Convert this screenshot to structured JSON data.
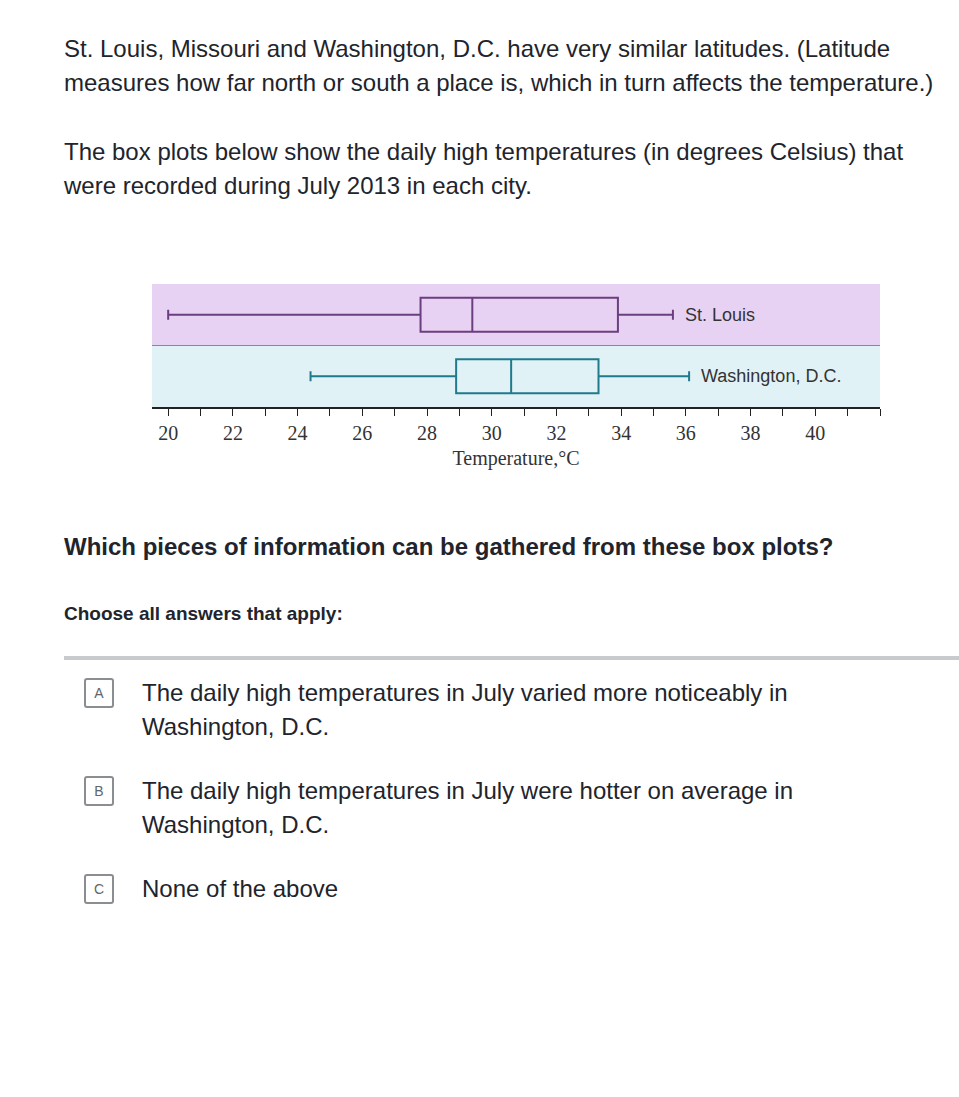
{
  "intro": [
    "St. Louis, Missouri and Washington, D.C. have very similar latitudes. (Latitude measures how far north or south a place is, which in turn affects the temperature.)",
    "The box plots below show the daily high temperatures (in degrees Celsius) that were recorded during July 2013 in each city."
  ],
  "chart_data": {
    "type": "box",
    "orientation": "horizontal",
    "xlabel": "Temperature,°C",
    "xlim": [
      19.5,
      42
    ],
    "xticks": [
      20,
      22,
      24,
      26,
      28,
      30,
      32,
      34,
      36,
      38,
      40
    ],
    "series": [
      {
        "name": "St. Louis",
        "color": "#6b3f7f",
        "min": 20,
        "q1": 27.8,
        "median": 29.4,
        "q3": 33.9,
        "max": 35.6
      },
      {
        "name": "Washington, D.C.",
        "color": "#1f7a8c",
        "min": 24.4,
        "q1": 28.9,
        "median": 30.6,
        "q3": 33.3,
        "max": 36.1
      }
    ]
  },
  "question": "Which pieces of information can be gathered from these box plots?",
  "instruction": "Choose all answers that apply:",
  "options": [
    {
      "letter": "A",
      "text": "The daily high temperatures in July varied more noticeably in Washington, D.C."
    },
    {
      "letter": "B",
      "text": "The daily high temperatures in July were hotter on average in Washington, D.C."
    },
    {
      "letter": "C",
      "text": "None of the above"
    }
  ]
}
